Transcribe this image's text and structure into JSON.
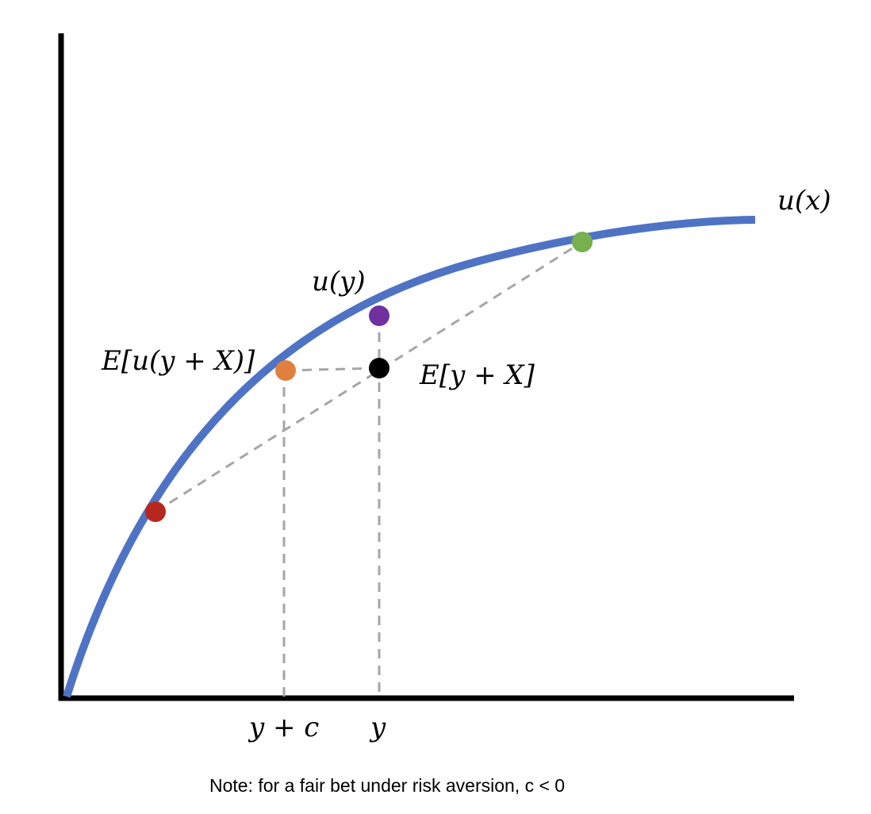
{
  "labels": {
    "curve": "u(x)",
    "u_y": "u(y)",
    "expected_utility": "E[u(y + X)]",
    "expected_wealth": "E[y + X]",
    "x_certainty_equivalent": "y + c",
    "x_y": "y"
  },
  "note": "Note: for a fair bet under risk aversion, c < 0",
  "colors": {
    "axis": "#000000",
    "curve": "#4f73c4",
    "guide": "#a6a6a6",
    "low_outcome": "#b8271f",
    "expected_utility_point": "#e0803f",
    "utility_of_mean": "#7030a0",
    "mean_point": "#000000",
    "high_outcome": "#76b04f"
  },
  "icons": {
    "low_outcome": "red-dot",
    "high_outcome": "green-dot",
    "expected_utility_point": "orange-dot",
    "utility_of_mean": "purple-dot",
    "mean_point": "black-dot"
  }
}
